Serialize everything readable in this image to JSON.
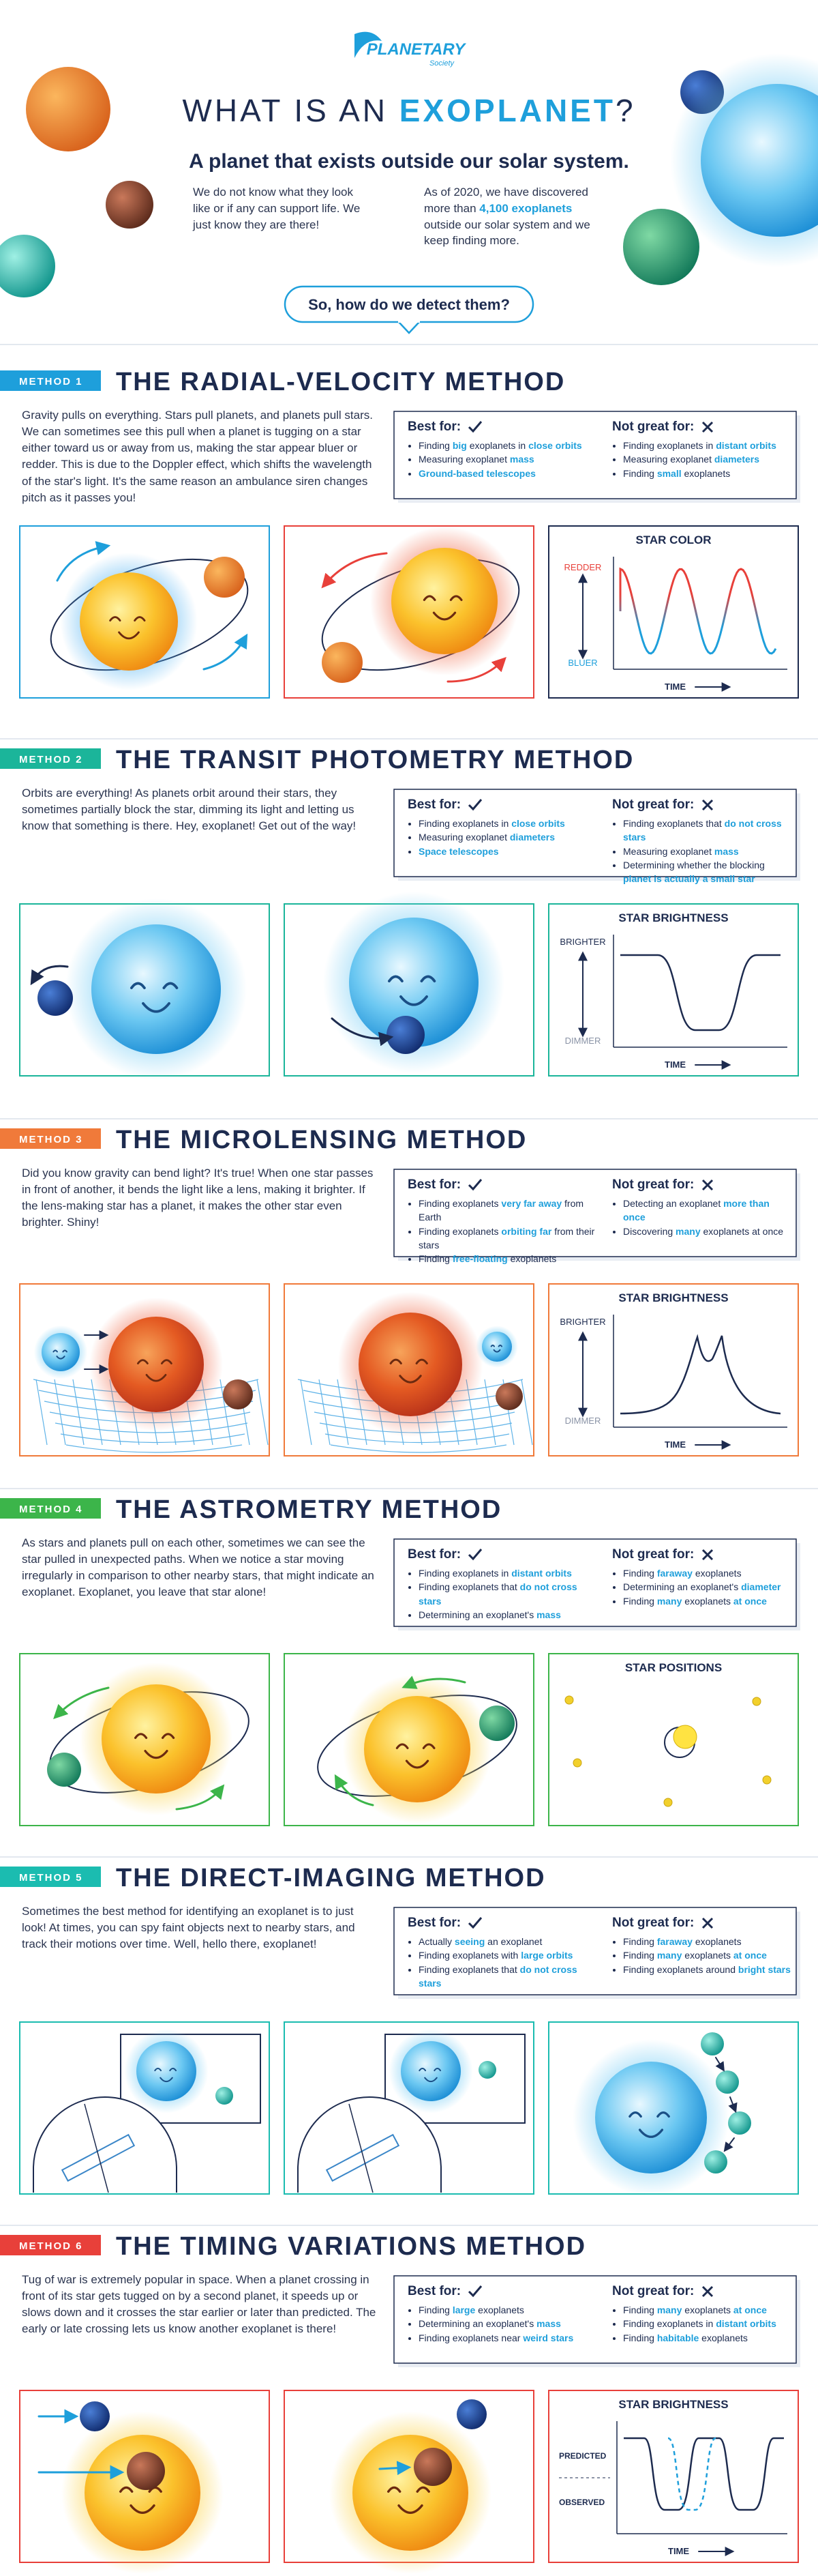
{
  "header": {
    "logo": {
      "name": "PLANETARY",
      "sub": "Society"
    },
    "title": {
      "before": "WHAT IS AN",
      "highlight": "EXOPLANET",
      "after": "?"
    },
    "subtitle": "A planet that exists outside our solar system.",
    "left_text": "We do not know what they look like or if any can support life. We just know they are there!",
    "right_text": [
      "As of 2020, we have discovered more than ",
      {
        "hl": "4,100 exoplanets"
      },
      " outside our solar system and we keep finding more."
    ],
    "question": "So, how do we detect them?"
  },
  "methods": [
    {
      "label": "METHOD 1",
      "title": "THE RADIAL-VELOCITY METHOD",
      "color": "#1e9fdb",
      "panel_colors": [
        "#1e9fdb",
        "#e8403a",
        "#1d2b4f"
      ],
      "description": "Gravity pulls on everything. Stars pull planets, and planets pull stars. We can sometimes see this pull when a planet is tugging on a star either toward us or away from us, making the star appear bluer or redder. This is due to the Doppler effect, which shifts the wavelength of the star's light. It's the same reason an ambulance siren changes pitch as it passes you!",
      "best_for": {
        "heading": "Best for:",
        "items": [
          [
            "Finding ",
            {
              "hl": "big"
            },
            " exoplanets in ",
            {
              "hl": "close orbits"
            }
          ],
          [
            "Measuring exoplanet ",
            {
              "hl": "mass"
            }
          ],
          [
            {
              "hl": "Ground-based telescopes"
            }
          ]
        ]
      },
      "not_great_for": {
        "heading": "Not great for:",
        "items": [
          [
            "Finding exoplanets in ",
            {
              "hl": "distant orbits"
            }
          ],
          [
            "Measuring exoplanet ",
            {
              "hl": "diameters"
            }
          ],
          [
            "Finding ",
            {
              "hl": "small"
            },
            " exoplanets"
          ]
        ]
      },
      "chart": {
        "title": "STAR COLOR",
        "top_label": "REDDER",
        "bottom_label": "BLUER",
        "x_label": "TIME"
      }
    },
    {
      "label": "METHOD 2",
      "title": "THE TRANSIT PHOTOMETRY METHOD",
      "color": "#1bb59a",
      "panel_colors": [
        "#1bb59a",
        "#1bb59a",
        "#1bb59a"
      ],
      "description": "Orbits are everything! As planets orbit around their stars, they sometimes partially block the star, dimming its light and letting us know that something is there. Hey, exoplanet! Get out of the way!",
      "best_for": {
        "heading": "Best for:",
        "items": [
          [
            "Finding exoplanets in ",
            {
              "hl": "close orbits"
            }
          ],
          [
            "Measuring exoplanet ",
            {
              "hl": "diameters"
            }
          ],
          [
            {
              "hl": "Space telescopes"
            }
          ]
        ]
      },
      "not_great_for": {
        "heading": "Not great for:",
        "items": [
          [
            "Finding exoplanets that ",
            {
              "hl": "do not cross stars"
            }
          ],
          [
            "Measuring exoplanet ",
            {
              "hl": "mass"
            }
          ],
          [
            "Determining whether the blocking ",
            {
              "hl": "planet is actually a small star"
            }
          ]
        ]
      },
      "chart": {
        "title": "STAR BRIGHTNESS",
        "top_label": "BRIGHTER",
        "bottom_label": "DIMMER",
        "x_label": "TIME"
      }
    },
    {
      "label": "METHOD 3",
      "title": "THE MICROLENSING METHOD",
      "color": "#f07a3a",
      "panel_colors": [
        "#f07a3a",
        "#f07a3a",
        "#f07a3a"
      ],
      "description": "Did you know gravity can bend light? It's true! When one star passes in front of another, it bends the light like a lens, making it brighter. If the lens-making star has a planet, it makes the other star even brighter. Shiny!",
      "best_for": {
        "heading": "Best for:",
        "items": [
          [
            "Finding exoplanets ",
            {
              "hl": "very far away"
            },
            " from Earth"
          ],
          [
            "Finding exoplanets ",
            {
              "hl": "orbiting far"
            },
            " from their stars"
          ],
          [
            "Finding ",
            {
              "hl": "free-floating"
            },
            " exoplanets"
          ]
        ]
      },
      "not_great_for": {
        "heading": "Not great for:",
        "items": [
          [
            "Detecting an exoplanet ",
            {
              "hl": "more than once"
            }
          ],
          [
            "Discovering ",
            {
              "hl": "many"
            },
            " exoplanets at once"
          ]
        ]
      },
      "chart": {
        "title": "STAR BRIGHTNESS",
        "top_label": "BRIGHTER",
        "bottom_label": "DIMMER",
        "x_label": "TIME"
      }
    },
    {
      "label": "METHOD 4",
      "title": "THE ASTROMETRY METHOD",
      "color": "#3cb54a",
      "panel_colors": [
        "#3cb54a",
        "#3cb54a",
        "#3cb54a"
      ],
      "description": "As stars and planets pull on each other, sometimes we can see the star pulled in unexpected paths. When we notice a star moving irregularly in comparison to other nearby stars, that might indicate an exoplanet. Exoplanet, you leave that star alone!",
      "best_for": {
        "heading": "Best for:",
        "items": [
          [
            "Finding exoplanets in ",
            {
              "hl": "distant orbits"
            }
          ],
          [
            "Finding exoplanets that ",
            {
              "hl": "do not cross stars"
            }
          ],
          [
            "Determining an exoplanet's ",
            {
              "hl": "mass"
            }
          ]
        ]
      },
      "not_great_for": {
        "heading": "Not great for:",
        "items": [
          [
            "Finding ",
            {
              "hl": "faraway"
            },
            " exoplanets"
          ],
          [
            "Determining an exoplanet's ",
            {
              "hl": "diameter"
            }
          ],
          [
            "Finding ",
            {
              "hl": "many"
            },
            " exoplanets ",
            {
              "hl": "at once"
            }
          ]
        ]
      },
      "chart": {
        "title": "STAR POSITIONS"
      }
    },
    {
      "label": "METHOD 5",
      "title": "THE DIRECT-IMAGING METHOD",
      "color": "#1bbcb0",
      "panel_colors": [
        "#1bbcb0",
        "#1bbcb0",
        "#1bbcb0"
      ],
      "description": "Sometimes the best method for identifying an exoplanet is to just look! At times, you can spy faint objects next to nearby stars, and track their motions over time. Well, hello there, exoplanet!",
      "best_for": {
        "heading": "Best for:",
        "items": [
          [
            "Actually ",
            {
              "hl": "seeing"
            },
            " an exoplanet"
          ],
          [
            "Finding exoplanets with ",
            {
              "hl": "large orbits"
            }
          ],
          [
            "Finding exoplanets that ",
            {
              "hl": "do not cross stars"
            }
          ]
        ]
      },
      "not_great_for": {
        "heading": "Not great for:",
        "items": [
          [
            "Finding ",
            {
              "hl": "faraway"
            },
            " exoplanets"
          ],
          [
            "Finding ",
            {
              "hl": "many"
            },
            " exoplanets ",
            {
              "hl": "at once"
            }
          ],
          [
            "Finding exoplanets around ",
            {
              "hl": "bright stars"
            }
          ]
        ]
      }
    },
    {
      "label": "METHOD 6",
      "title": "THE TIMING VARIATIONS METHOD",
      "color": "#e8403a",
      "panel_colors": [
        "#e8403a",
        "#e8403a",
        "#e8403a"
      ],
      "description": "Tug of war is extremely popular in space. When a planet crossing in front of its star gets tugged on by a second planet, it speeds up or slows down and it crosses the star earlier or later than predicted. The early or late crossing lets us know another exoplanet is there!",
      "best_for": {
        "heading": "Best for:",
        "items": [
          [
            "Finding ",
            {
              "hl": "large"
            },
            " exoplanets"
          ],
          [
            "Determining an exoplanet's ",
            {
              "hl": "mass"
            }
          ],
          [
            "Finding exoplanets near ",
            {
              "hl": "weird stars"
            }
          ]
        ]
      },
      "not_great_for": {
        "heading": "Not great for:",
        "items": [
          [
            "Finding ",
            {
              "hl": "many"
            },
            " exoplanets ",
            {
              "hl": "at once"
            }
          ],
          [
            "Finding exoplanets in ",
            {
              "hl": "distant orbits"
            }
          ],
          [
            "Finding ",
            {
              "hl": "habitable"
            },
            " exoplanets"
          ]
        ]
      },
      "chart": {
        "title": "STAR BRIGHTNESS",
        "top_label": "PREDICTED",
        "bottom_label": "OBSERVED",
        "x_label": "TIME"
      }
    }
  ]
}
